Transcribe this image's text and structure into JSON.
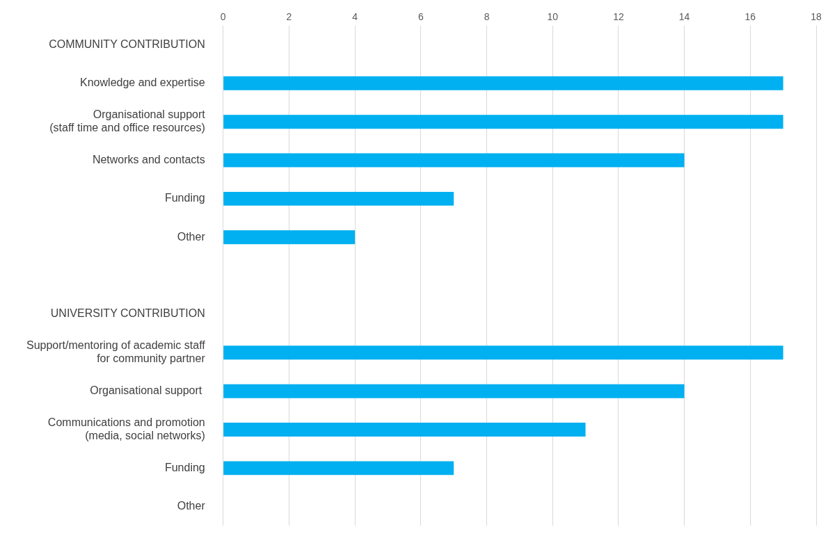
{
  "chart_data": {
    "type": "bar",
    "orientation": "horizontal",
    "categories": [
      "COMMUNITY CONTRIBUTION",
      "Knowledge and expertise",
      "Organisational support\n(staff time and office resources)",
      "Networks and contacts",
      "Funding",
      "Other",
      null,
      "UNIVERSITY CONTRIBUTION",
      "Support/mentoring of academic staff\nfor community partner",
      "Organisational support ",
      "Communications and promotion\n(media, social networks)",
      "Funding",
      "Other"
    ],
    "values": [
      null,
      17,
      17,
      14,
      7,
      4,
      null,
      null,
      17,
      14,
      11,
      7,
      0
    ],
    "color": "#00b0f0",
    "xlim": [
      0,
      18
    ],
    "xticks": [
      0,
      2,
      4,
      6,
      8,
      10,
      12,
      14,
      16,
      18
    ],
    "grid": "x"
  }
}
